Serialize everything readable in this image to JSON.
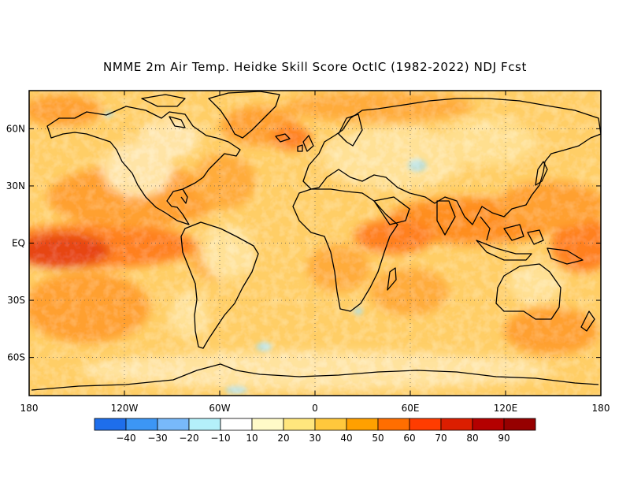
{
  "title": "NMME 2m Air Temp. Heidke Skill Score OctIC (1982-2022) NDJ Fcst",
  "map": {
    "lon_labels": [
      "180",
      "120W",
      "60W",
      "0",
      "60E",
      "120E",
      "180"
    ],
    "lat_labels": [
      "60N",
      "30N",
      "EQ",
      "30S",
      "60S"
    ],
    "lat_values": [
      60,
      30,
      0,
      -30,
      -60
    ],
    "lon_values": [
      -180,
      -120,
      -60,
      0,
      60,
      120,
      180
    ],
    "lat_range": [
      -80,
      80
    ],
    "lon_range": [
      -180,
      180
    ],
    "gridlines": "dotted",
    "coastline_color": "#000000"
  },
  "colorbar": {
    "labels": [
      "-40",
      "-30",
      "-20",
      "-10",
      "10",
      "20",
      "30",
      "40",
      "50",
      "60",
      "70",
      "80",
      "90"
    ],
    "colors": [
      "#1e6eeb",
      "#3c96f5",
      "#78b9fa",
      "#b4f0fa",
      "#ffffff",
      "#fffac8",
      "#ffe67d",
      "#ffc83c",
      "#ffa000",
      "#ff6e00",
      "#ff3c00",
      "#dc1e00",
      "#b40000",
      "#960000"
    ]
  }
}
